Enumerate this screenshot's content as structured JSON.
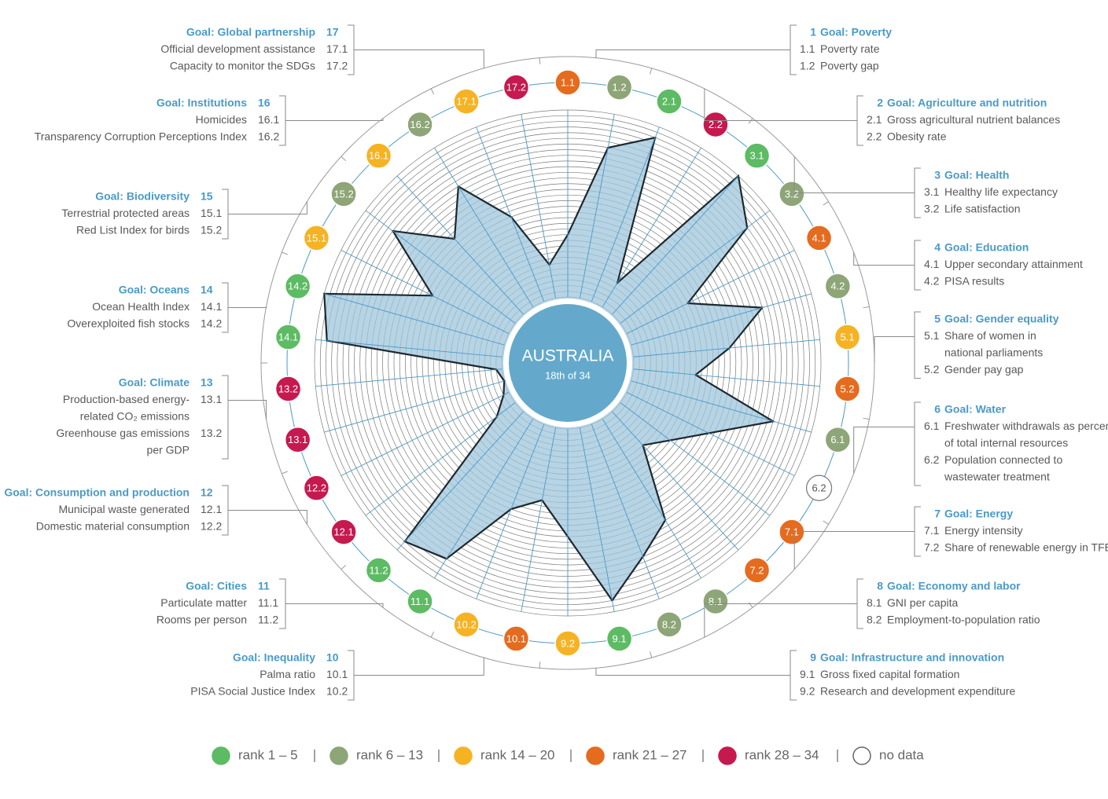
{
  "chart_data": {
    "type": "radar",
    "title": "AUSTRALIA",
    "subtitle": "18th of 34",
    "categories": [
      "1.1",
      "1.2",
      "2.1",
      "2.2",
      "3.1",
      "3.2",
      "4.1",
      "4.2",
      "5.1",
      "5.2",
      "6.1",
      "6.2",
      "7.1",
      "7.2",
      "8.1",
      "8.2",
      "9.1",
      "9.2",
      "10.1",
      "10.2",
      "11.1",
      "11.2",
      "12.1",
      "12.2",
      "13.1",
      "13.2",
      "14.1",
      "14.2",
      "15.1",
      "15.2",
      "16.1",
      "16.2",
      "17.1",
      "17.2"
    ],
    "values": [
      23,
      7,
      3,
      29,
      1,
      6,
      22,
      10,
      17,
      23,
      8,
      null,
      23,
      26,
      13,
      9,
      3,
      15,
      21,
      18,
      5,
      3,
      30,
      33,
      34,
      33,
      3,
      1,
      19,
      7,
      16,
      9,
      18,
      28
    ],
    "colors": [
      "#e56b1f",
      "#8da577",
      "#5dbb63",
      "#c6194f",
      "#5dbb63",
      "#8da577",
      "#e56b1f",
      "#8da577",
      "#f5b323",
      "#e56b1f",
      "#8da577",
      "#ffffff",
      "#e56b1f",
      "#e56b1f",
      "#8da577",
      "#8da577",
      "#5dbb63",
      "#f5b323",
      "#e56b1f",
      "#f5b323",
      "#5dbb63",
      "#5dbb63",
      "#c6194f",
      "#c6194f",
      "#c6194f",
      "#c6194f",
      "#5dbb63",
      "#5dbb63",
      "#f5b323",
      "#8da577",
      "#f5b323",
      "#8da577",
      "#f5b323",
      "#c6194f"
    ],
    "rlim": [
      34,
      1
    ],
    "area_color": "#9fc6dc",
    "line_color": "#1d2830",
    "spoke_color": "#4a9ac7",
    "center_color": "#64a9cb",
    "legend": [
      {
        "label": "rank 1 – 5",
        "color": "#5dbb63"
      },
      {
        "label": "rank 6 – 13",
        "color": "#8da577"
      },
      {
        "label": "rank 14 – 20",
        "color": "#f5b323"
      },
      {
        "label": "rank 21 – 27",
        "color": "#e56b1f"
      },
      {
        "label": "rank 28 – 34",
        "color": "#c6194f"
      },
      {
        "label": "no data",
        "color": "#ffffff"
      }
    ]
  },
  "goals": [
    {
      "number": "1",
      "title": "Goal: Poverty",
      "indicators": [
        {
          "code": "1.1",
          "name": [
            "Poverty rate"
          ]
        },
        {
          "code": "1.2",
          "name": [
            "Poverty gap"
          ]
        }
      ]
    },
    {
      "number": "2",
      "title": "Goal: Agriculture and nutrition",
      "indicators": [
        {
          "code": "2.1",
          "name": [
            "Gross agricultural nutrient balances"
          ]
        },
        {
          "code": "2.2",
          "name": [
            "Obesity rate"
          ]
        }
      ]
    },
    {
      "number": "3",
      "title": "Goal: Health",
      "indicators": [
        {
          "code": "3.1",
          "name": [
            "Healthy life expectancy"
          ]
        },
        {
          "code": "3.2",
          "name": [
            "Life satisfaction"
          ]
        }
      ]
    },
    {
      "number": "4",
      "title": "Goal: Education",
      "indicators": [
        {
          "code": "4.1",
          "name": [
            "Upper secondary attainment"
          ]
        },
        {
          "code": "4.2",
          "name": [
            "PISA results"
          ]
        }
      ]
    },
    {
      "number": "5",
      "title": "Goal: Gender equality",
      "indicators": [
        {
          "code": "5.1",
          "name": [
            "Share of women in",
            "national parliaments"
          ]
        },
        {
          "code": "5.2",
          "name": [
            "Gender pay gap"
          ]
        }
      ]
    },
    {
      "number": "6",
      "title": "Goal: Water",
      "indicators": [
        {
          "code": "6.1",
          "name": [
            "Freshwater withdrawals as percent",
            "of total internal resources"
          ]
        },
        {
          "code": "6.2",
          "name": [
            "Population connected to",
            "wastewater treatment"
          ]
        }
      ]
    },
    {
      "number": "7",
      "title": "Goal: Energy",
      "indicators": [
        {
          "code": "7.1",
          "name": [
            "Energy intensity"
          ]
        },
        {
          "code": "7.2",
          "name": [
            "Share of renewable energy in TFEC"
          ]
        }
      ]
    },
    {
      "number": "8",
      "title": "Goal: Economy and labor",
      "indicators": [
        {
          "code": "8.1",
          "name": [
            "GNI per capita"
          ]
        },
        {
          "code": "8.2",
          "name": [
            "Employment-to-population ratio"
          ]
        }
      ]
    },
    {
      "number": "9",
      "title": "Goal: Infrastructure and innovation",
      "indicators": [
        {
          "code": "9.1",
          "name": [
            "Gross fixed capital formation"
          ]
        },
        {
          "code": "9.2",
          "name": [
            "Research and development expenditure"
          ]
        }
      ]
    },
    {
      "number": "10",
      "title": "Goal: Inequality",
      "indicators": [
        {
          "code": "10.1",
          "name": [
            "Palma ratio"
          ]
        },
        {
          "code": "10.2",
          "name": [
            "PISA Social Justice Index"
          ]
        }
      ]
    },
    {
      "number": "11",
      "title": "Goal: Cities",
      "indicators": [
        {
          "code": "11.1",
          "name": [
            "Particulate matter"
          ]
        },
        {
          "code": "11.2",
          "name": [
            "Rooms per person"
          ]
        }
      ]
    },
    {
      "number": "12",
      "title": "Goal: Consumption and production",
      "indicators": [
        {
          "code": "12.1",
          "name": [
            "Municipal waste generated"
          ]
        },
        {
          "code": "12.2",
          "name": [
            "Domestic material consumption"
          ]
        }
      ]
    },
    {
      "number": "13",
      "title": "Goal: Climate",
      "indicators": [
        {
          "code": "13.1",
          "name": [
            "Production-based energy-",
            "related CO₂ emissions"
          ]
        },
        {
          "code": "13.2",
          "name": [
            "Greenhouse gas emissions",
            "per GDP"
          ]
        }
      ]
    },
    {
      "number": "14",
      "title": "Goal: Oceans",
      "indicators": [
        {
          "code": "14.1",
          "name": [
            "Ocean Health Index"
          ]
        },
        {
          "code": "14.2",
          "name": [
            "Overexploited fish stocks"
          ]
        }
      ]
    },
    {
      "number": "15",
      "title": "Goal: Biodiversity",
      "indicators": [
        {
          "code": "15.1",
          "name": [
            "Terrestrial protected areas"
          ]
        },
        {
          "code": "15.2",
          "name": [
            "Red List Index for birds"
          ]
        }
      ]
    },
    {
      "number": "16",
      "title": "Goal: Institutions",
      "indicators": [
        {
          "code": "16.1",
          "name": [
            "Homicides"
          ]
        },
        {
          "code": "16.2",
          "name": [
            "Transparency Corruption Perceptions Index"
          ]
        }
      ]
    },
    {
      "number": "17",
      "title": "Goal: Global partnership",
      "indicators": [
        {
          "code": "17.1",
          "name": [
            "Official development assistance"
          ]
        },
        {
          "code": "17.2",
          "name": [
            "Capacity to monitor the SDGs"
          ]
        }
      ]
    }
  ]
}
